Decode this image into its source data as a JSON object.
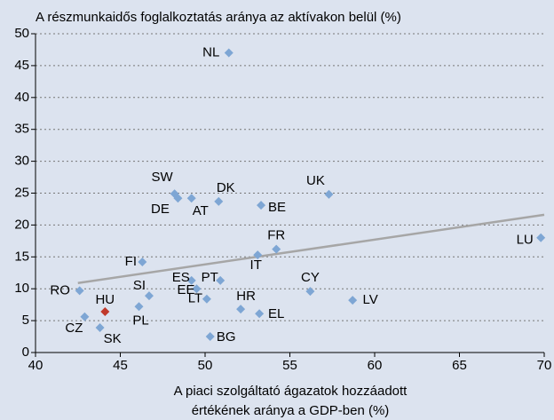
{
  "chart_data": {
    "type": "scatter",
    "title": "A részmunkaidős foglalkoztatás aránya az aktívakon belül (%)",
    "xlabel": [
      "A piaci szolgáltató ágazatok hozzáadott",
      "értékének aránya a GDP-ben (%)"
    ],
    "labels": [
      "NL",
      "SW",
      "DE",
      "AT",
      "DK",
      "BE",
      "UK",
      "FR",
      "IT",
      "LU",
      "FI",
      "ES",
      "PT",
      "EE",
      "LT",
      "SI",
      "RO",
      "CY",
      "HR",
      "EL",
      "LV",
      "HU",
      "PL",
      "CZ",
      "SK",
      "BG"
    ],
    "x": [
      51.4,
      48.2,
      48.4,
      49.2,
      50.8,
      53.3,
      57.3,
      54.2,
      53.1,
      69.8,
      46.3,
      49.2,
      50.9,
      49.5,
      50.1,
      46.7,
      42.6,
      56.2,
      52.1,
      53.2,
      58.7,
      44.1,
      46.1,
      42.9,
      43.8,
      50.3
    ],
    "y": [
      47.0,
      24.9,
      24.2,
      24.2,
      23.7,
      23.1,
      24.8,
      16.2,
      15.3,
      18.0,
      14.2,
      11.3,
      11.3,
      10.0,
      8.4,
      8.9,
      9.7,
      9.6,
      6.8,
      6.1,
      8.2,
      6.4,
      7.2,
      5.6,
      3.9,
      2.5
    ],
    "colors": [
      "#7ea6d4",
      "#7ea6d4",
      "#7ea6d4",
      "#7ea6d4",
      "#7ea6d4",
      "#7ea6d4",
      "#7ea6d4",
      "#7ea6d4",
      "#7ea6d4",
      "#7ea6d4",
      "#7ea6d4",
      "#7ea6d4",
      "#7ea6d4",
      "#7ea6d4",
      "#7ea6d4",
      "#7ea6d4",
      "#7ea6d4",
      "#7ea6d4",
      "#7ea6d4",
      "#7ea6d4",
      "#7ea6d4",
      "#c0392b",
      "#7ea6d4",
      "#7ea6d4",
      "#7ea6d4",
      "#7ea6d4"
    ],
    "trendline": {
      "x": [
        42.5,
        70
      ],
      "y": [
        10.9,
        21.6
      ],
      "color": "#a6a6a6"
    },
    "xlim": [
      40,
      70
    ],
    "xticks": [
      40,
      45,
      50,
      55,
      60,
      65,
      70
    ],
    "ylim": [
      0,
      50
    ],
    "yticks": [
      0,
      5,
      10,
      15,
      20,
      25,
      30,
      35,
      40,
      45,
      50
    ],
    "grid": true
  }
}
